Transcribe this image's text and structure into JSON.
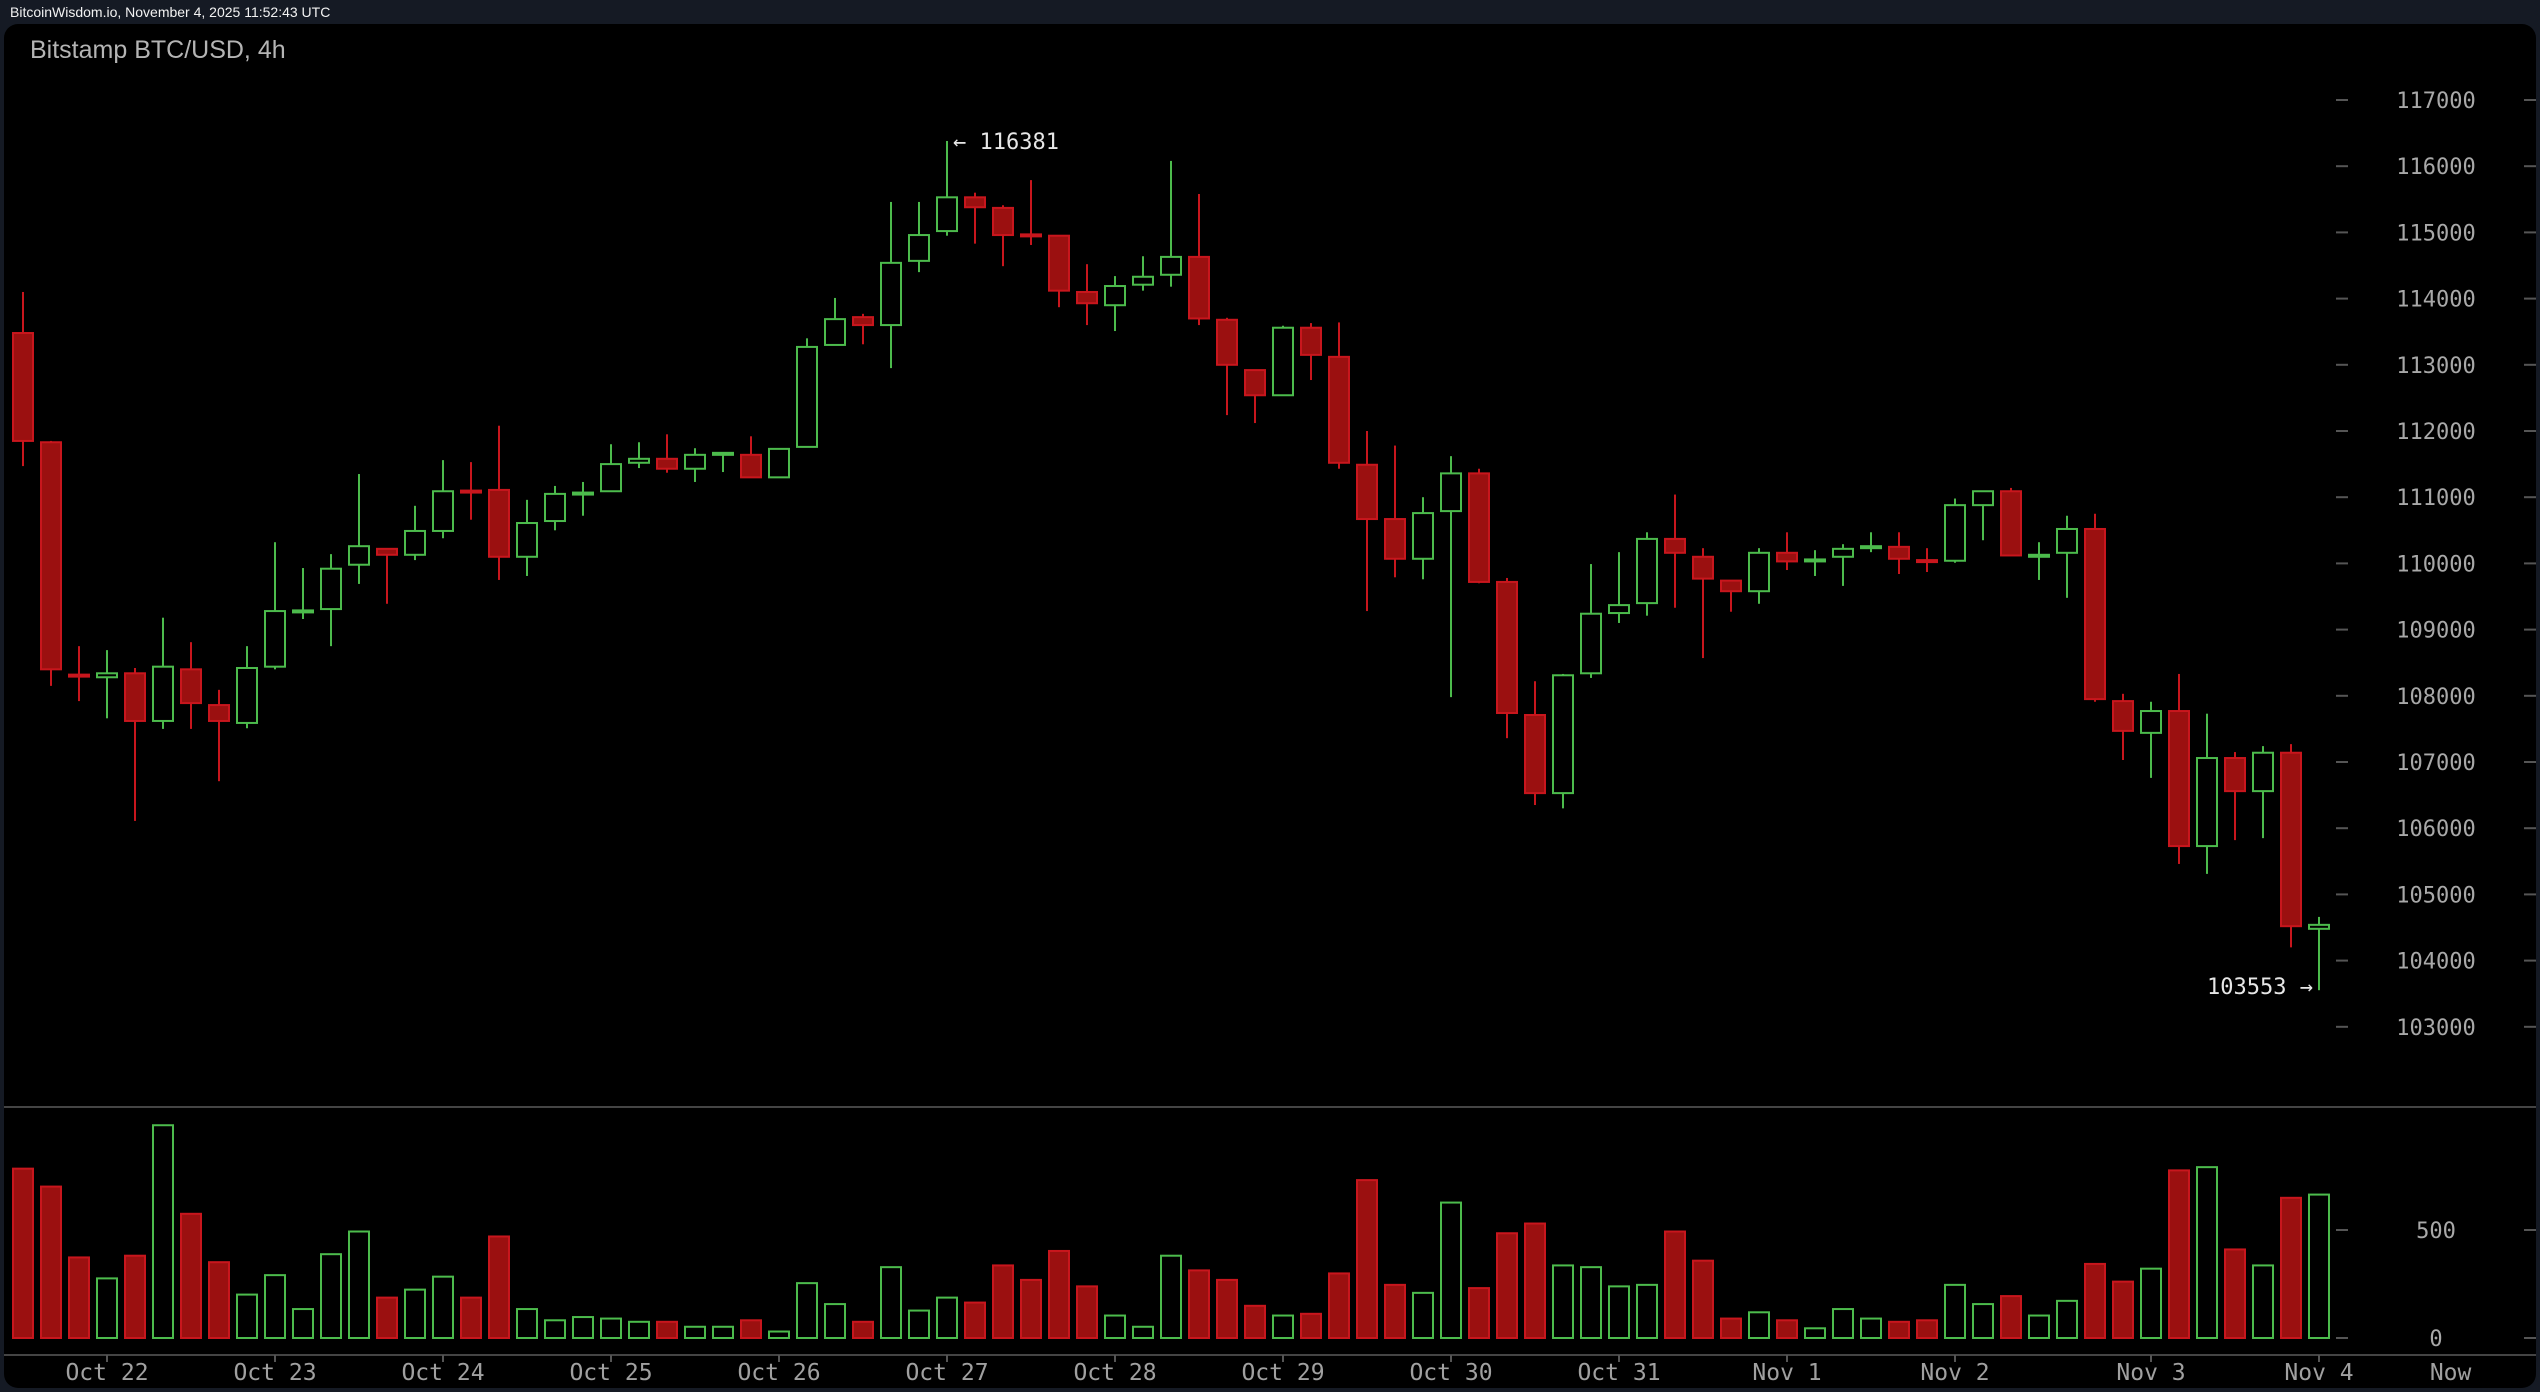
{
  "header": {
    "source_line": "BitcoinWisdom.io, November 4, 2025 11:52:43 UTC"
  },
  "chart": {
    "title": "Bitstamp BTC/USD, 4h",
    "colors": {
      "up_stroke": "#4cbb4c",
      "down_fill": "#9b1010",
      "down_stroke": "#c8161d",
      "axis_text": "#a8a8a8",
      "separator": "#444444",
      "background": "#000000"
    },
    "annotations": {
      "high_label": "← 116381",
      "low_label": "103553 →"
    }
  },
  "chart_data": {
    "type": "candlestick",
    "title": "Bitstamp BTC/USD, 4h",
    "xlabel": "",
    "ylabel": "",
    "price_axis": {
      "ticks": [
        117000,
        116000,
        115000,
        114000,
        113000,
        112000,
        111000,
        110000,
        109000,
        108000,
        107000,
        106000,
        105000,
        104000,
        103000
      ],
      "ylim": [
        102300,
        117800
      ]
    },
    "volume_axis": {
      "ticks": [
        500,
        0
      ],
      "ylim": [
        0,
        1070
      ]
    },
    "time_axis": {
      "labels": [
        {
          "label": "Oct 22",
          "candle_index": 3
        },
        {
          "label": "Oct 23",
          "candle_index": 9
        },
        {
          "label": "Oct 24",
          "candle_index": 15
        },
        {
          "label": "Oct 25",
          "candle_index": 21
        },
        {
          "label": "Oct 26",
          "candle_index": 27
        },
        {
          "label": "Oct 27",
          "candle_index": 33
        },
        {
          "label": "Oct 28",
          "candle_index": 39
        },
        {
          "label": "Oct 29",
          "candle_index": 45
        },
        {
          "label": "Oct 30",
          "candle_index": 51
        },
        {
          "label": "Oct 31",
          "candle_index": 57
        },
        {
          "label": "Nov 1",
          "candle_index": 63
        },
        {
          "label": "Nov 2",
          "candle_index": 69
        },
        {
          "label": "Nov 3",
          "candle_index": 76
        },
        {
          "label": "Nov 4",
          "candle_index": 82
        },
        {
          "label": "Now",
          "candle_index": 86.7
        }
      ]
    },
    "annotations": [
      {
        "text": "← 116381",
        "value": 116381,
        "candle_index": 33,
        "type": "high"
      },
      {
        "text": "103553 →",
        "value": 103553,
        "candle_index": 82,
        "type": "low"
      }
    ],
    "grid": false,
    "legend": null,
    "series_fields": [
      "open",
      "high",
      "low",
      "close",
      "volume"
    ],
    "candles": [
      [
        113480,
        114100,
        111470,
        111850,
        784
      ],
      [
        111830,
        111850,
        108150,
        108400,
        701
      ],
      [
        108320,
        108750,
        107920,
        108290,
        373
      ],
      [
        108280,
        108690,
        107660,
        108340,
        276
      ],
      [
        108340,
        108420,
        106110,
        107620,
        381
      ],
      [
        107620,
        109180,
        107500,
        108440,
        985
      ],
      [
        108400,
        108810,
        107500,
        107890,
        575
      ],
      [
        107860,
        108090,
        106710,
        107620,
        351
      ],
      [
        107590,
        108750,
        107510,
        108420,
        201
      ],
      [
        108440,
        110320,
        108400,
        109280,
        291
      ],
      [
        109270,
        109930,
        109160,
        109290,
        134
      ],
      [
        109310,
        110140,
        108750,
        109920,
        388
      ],
      [
        109980,
        111350,
        109690,
        110260,
        493
      ],
      [
        110220,
        110220,
        109390,
        110130,
        187
      ],
      [
        110130,
        110870,
        110050,
        110490,
        224
      ],
      [
        110490,
        111560,
        110380,
        111090,
        284
      ],
      [
        111100,
        111530,
        110660,
        111080,
        187
      ],
      [
        111110,
        112080,
        109750,
        110100,
        470
      ],
      [
        110100,
        110960,
        109810,
        110610,
        134
      ],
      [
        110640,
        111170,
        110500,
        111050,
        82
      ],
      [
        111050,
        111230,
        110720,
        111070,
        97
      ],
      [
        111090,
        111800,
        111090,
        111500,
        90
      ],
      [
        111520,
        111830,
        111440,
        111580,
        75
      ],
      [
        111580,
        111950,
        111370,
        111430,
        75
      ],
      [
        111430,
        111740,
        111230,
        111640,
        52
      ],
      [
        111660,
        111670,
        111380,
        111670,
        52
      ],
      [
        111640,
        111920,
        111300,
        111300,
        82
      ],
      [
        111300,
        111730,
        111300,
        111730,
        30
      ],
      [
        111760,
        113400,
        111760,
        113270,
        254
      ],
      [
        113300,
        114010,
        113300,
        113690,
        157
      ],
      [
        113720,
        113770,
        113310,
        113600,
        75
      ],
      [
        113600,
        115460,
        112950,
        114540,
        328
      ],
      [
        114570,
        115460,
        114400,
        114960,
        127
      ],
      [
        115020,
        116381,
        114950,
        115530,
        187
      ],
      [
        115530,
        115600,
        114830,
        115380,
        164
      ],
      [
        115370,
        115410,
        114490,
        114960,
        336
      ],
      [
        114970,
        115790,
        114810,
        114950,
        269
      ],
      [
        114950,
        114950,
        113870,
        114120,
        403
      ],
      [
        114100,
        114520,
        113600,
        113930,
        239
      ],
      [
        113900,
        114340,
        113510,
        114190,
        104
      ],
      [
        114210,
        114640,
        114120,
        114330,
        52
      ],
      [
        114360,
        116080,
        114180,
        114630,
        381
      ],
      [
        114630,
        115580,
        113600,
        113700,
        313
      ],
      [
        113680,
        113710,
        112240,
        113000,
        269
      ],
      [
        112920,
        112920,
        112120,
        112540,
        149
      ],
      [
        112540,
        113590,
        112540,
        113560,
        104
      ],
      [
        113560,
        113630,
        112770,
        113150,
        112
      ],
      [
        113120,
        113640,
        111430,
        111520,
        299
      ],
      [
        111490,
        112000,
        109280,
        110670,
        731
      ],
      [
        110670,
        111780,
        109790,
        110070,
        246
      ],
      [
        110070,
        111000,
        109760,
        110760,
        209
      ],
      [
        110790,
        111620,
        107980,
        111360,
        627
      ],
      [
        111360,
        111430,
        109700,
        109720,
        231
      ],
      [
        109720,
        109780,
        107360,
        107740,
        485
      ],
      [
        107710,
        108220,
        106350,
        106530,
        530
      ],
      [
        106530,
        108330,
        106300,
        108310,
        336
      ],
      [
        108340,
        109990,
        108270,
        109240,
        328
      ],
      [
        109250,
        110170,
        109100,
        109370,
        239
      ],
      [
        109400,
        110470,
        109210,
        110370,
        246
      ],
      [
        110370,
        111040,
        109330,
        110160,
        493
      ],
      [
        110100,
        110230,
        108570,
        109770,
        358
      ],
      [
        109740,
        109740,
        109270,
        109580,
        90
      ],
      [
        109580,
        110230,
        109390,
        110160,
        119
      ],
      [
        110160,
        110470,
        109900,
        110030,
        82
      ],
      [
        110030,
        110200,
        109810,
        110060,
        45
      ],
      [
        110100,
        110290,
        109660,
        110220,
        134
      ],
      [
        110240,
        110470,
        110170,
        110260,
        90
      ],
      [
        110250,
        110470,
        109840,
        110070,
        75
      ],
      [
        110050,
        110230,
        109870,
        110030,
        82
      ],
      [
        110040,
        110980,
        110010,
        110880,
        246
      ],
      [
        110880,
        111090,
        110350,
        111090,
        157
      ],
      [
        111090,
        111140,
        110120,
        110120,
        194
      ],
      [
        110110,
        110320,
        109750,
        110130,
        104
      ],
      [
        110160,
        110720,
        109480,
        110520,
        172
      ],
      [
        110520,
        110750,
        107910,
        107950,
        343
      ],
      [
        107920,
        108030,
        107030,
        107470,
        261
      ],
      [
        107440,
        107910,
        106760,
        107770,
        321
      ],
      [
        107770,
        108330,
        105460,
        105730,
        776
      ],
      [
        105730,
        107730,
        105310,
        107060,
        791
      ],
      [
        107060,
        107150,
        105820,
        106560,
        410
      ],
      [
        106560,
        107240,
        105850,
        107140,
        336
      ],
      [
        107140,
        107270,
        104200,
        104520,
        649
      ],
      [
        104480,
        104660,
        103553,
        104540,
        664
      ]
    ]
  }
}
